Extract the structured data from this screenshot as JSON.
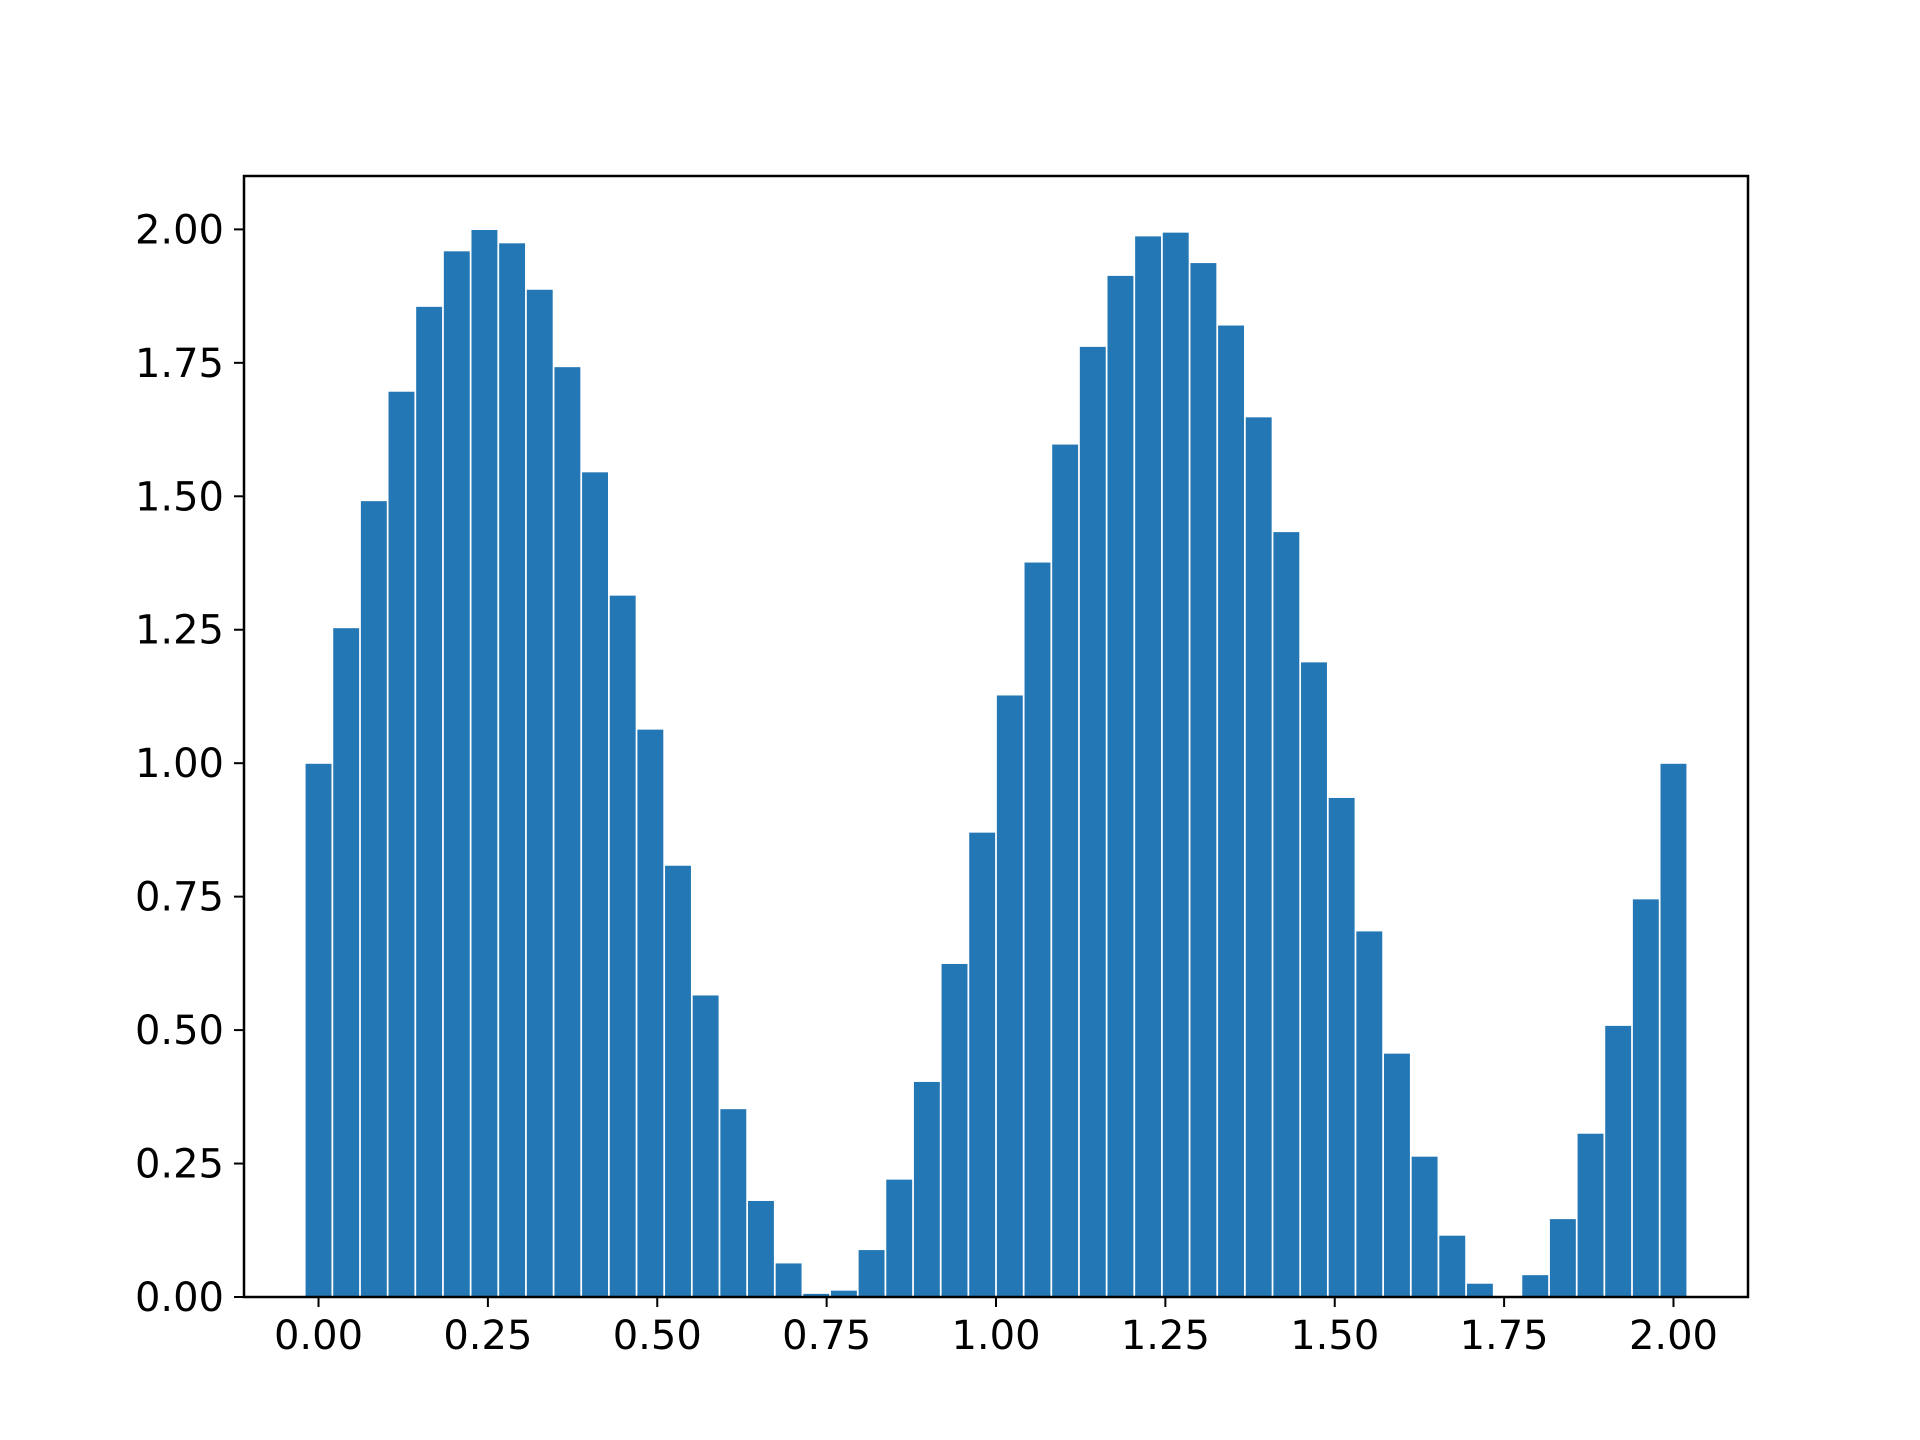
{
  "chart_data": {
    "type": "bar",
    "x": [
      0.0,
      0.04081633,
      0.08163265,
      0.12244898,
      0.16326531,
      0.20408163,
      0.24489796,
      0.28571429,
      0.32653061,
      0.36734694,
      0.40816327,
      0.44897959,
      0.48979592,
      0.53061224,
      0.57142857,
      0.6122449,
      0.65306122,
      0.69387755,
      0.73469388,
      0.7755102,
      0.81632653,
      0.85714286,
      0.89795918,
      0.93877551,
      0.97959184,
      1.02040816,
      1.06122449,
      1.10204082,
      1.14285714,
      1.18367347,
      1.2244898,
      1.26530612,
      1.30612245,
      1.34693878,
      1.3877551,
      1.42857143,
      1.46938776,
      1.51020408,
      1.55102041,
      1.59183673,
      1.63265306,
      1.67346939,
      1.71428571,
      1.75510204,
      1.79591837,
      1.83673469,
      1.87755102,
      1.91836735,
      1.95918367,
      2.0
    ],
    "values": [
      1.0,
      1.254,
      1.492,
      1.697,
      1.856,
      1.96,
      2.0,
      1.975,
      1.888,
      1.743,
      1.546,
      1.315,
      1.064,
      0.809,
      0.566,
      0.353,
      0.181,
      0.064,
      0.007,
      0.013,
      0.089,
      0.221,
      0.404,
      0.625,
      0.871,
      1.128,
      1.377,
      1.598,
      1.781,
      1.914,
      1.988,
      1.995,
      1.938,
      1.821,
      1.649,
      1.434,
      1.19,
      0.936,
      0.686,
      0.457,
      0.264,
      0.116,
      0.026,
      0.0,
      0.042,
      0.147,
      0.307,
      0.509,
      0.746,
      1.0
    ],
    "bar_width": 0.04,
    "xlim": [
      -0.11,
      2.11
    ],
    "ylim": [
      0,
      2.1
    ],
    "xticks": [
      0.0,
      0.25,
      0.5,
      0.75,
      1.0,
      1.25,
      1.5,
      1.75,
      2.0
    ],
    "xtick_labels": [
      "0.00",
      "0.25",
      "0.50",
      "0.75",
      "1.00",
      "1.25",
      "1.50",
      "1.75",
      "2.00"
    ],
    "yticks": [
      0.0,
      0.25,
      0.5,
      0.75,
      1.0,
      1.25,
      1.5,
      1.75,
      2.0
    ],
    "ytick_labels": [
      "0.00",
      "0.25",
      "0.50",
      "0.75",
      "1.00",
      "1.25",
      "1.50",
      "1.75",
      "2.00"
    ],
    "title": "",
    "xlabel": "",
    "ylabel": "",
    "grid": false,
    "colors": {
      "bar": "#2277b4",
      "bar_edge": "#ffffff",
      "axis": "#000000",
      "background": "#ffffff"
    }
  }
}
